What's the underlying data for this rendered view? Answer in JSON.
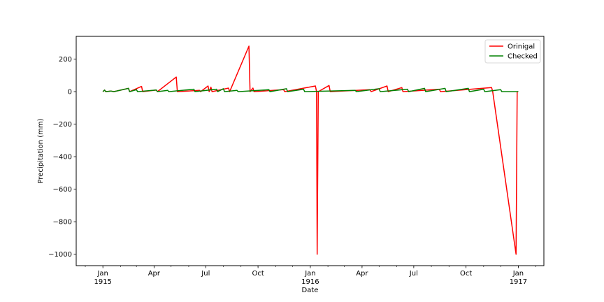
{
  "chart_data": {
    "type": "line",
    "xlabel": "Date",
    "ylabel": "Precipitation (mm)",
    "xlim": [
      "1914-11-15",
      "1917-02-15"
    ],
    "ylim": [
      -1070,
      340
    ],
    "grid": false,
    "legend_position": "top-right",
    "x_ticks": [
      {
        "date": "1915-01-01",
        "label": "Jan",
        "label2": "1915"
      },
      {
        "date": "1915-04-01",
        "label": "Apr",
        "label2": ""
      },
      {
        "date": "1915-07-01",
        "label": "Jul",
        "label2": ""
      },
      {
        "date": "1915-10-01",
        "label": "Oct",
        "label2": ""
      },
      {
        "date": "1916-01-01",
        "label": "Jan",
        "label2": "1916"
      },
      {
        "date": "1916-04-01",
        "label": "Apr",
        "label2": ""
      },
      {
        "date": "1916-07-01",
        "label": "Jul",
        "label2": ""
      },
      {
        "date": "1916-10-01",
        "label": "Oct",
        "label2": ""
      },
      {
        "date": "1917-01-01",
        "label": "Jan",
        "label2": "1917"
      }
    ],
    "y_ticks": [
      {
        "value": 200,
        "label": "200"
      },
      {
        "value": 0,
        "label": "0"
      },
      {
        "value": -200,
        "label": "−200"
      },
      {
        "value": -400,
        "label": "−400"
      },
      {
        "value": -600,
        "label": "−600"
      },
      {
        "value": -800,
        "label": "−800"
      },
      {
        "value": -1000,
        "label": "−1000"
      }
    ],
    "series": [
      {
        "name": "Orinigal",
        "color": "#ff0000",
        "points": [
          [
            "1915-01-01",
            0
          ],
          [
            "1915-01-04",
            10
          ],
          [
            "1915-01-06",
            0
          ],
          [
            "1915-01-15",
            4
          ],
          [
            "1915-01-20",
            0
          ],
          [
            "1915-02-15",
            20
          ],
          [
            "1915-02-17",
            0
          ],
          [
            "1915-03-10",
            32
          ],
          [
            "1915-03-12",
            0
          ],
          [
            "1915-04-05",
            10
          ],
          [
            "1915-04-07",
            0
          ],
          [
            "1915-05-10",
            90
          ],
          [
            "1915-05-12",
            0
          ],
          [
            "1915-06-20",
            8
          ],
          [
            "1915-06-22",
            0
          ],
          [
            "1915-07-05",
            35
          ],
          [
            "1915-07-07",
            0
          ],
          [
            "1915-07-10",
            28
          ],
          [
            "1915-07-12",
            0
          ],
          [
            "1915-08-10",
            22
          ],
          [
            "1915-08-12",
            0
          ],
          [
            "1915-09-15",
            280
          ],
          [
            "1915-09-17",
            0
          ],
          [
            "1915-09-22",
            22
          ],
          [
            "1915-09-24",
            0
          ],
          [
            "1915-11-15",
            12
          ],
          [
            "1915-11-17",
            0
          ],
          [
            "1916-01-10",
            35
          ],
          [
            "1916-01-12",
            0
          ],
          [
            "1916-01-13",
            -1000
          ],
          [
            "1916-01-15",
            0
          ],
          [
            "1916-02-03",
            38
          ],
          [
            "1916-02-05",
            0
          ],
          [
            "1916-04-15",
            12
          ],
          [
            "1916-04-17",
            0
          ],
          [
            "1916-05-15",
            35
          ],
          [
            "1916-05-17",
            0
          ],
          [
            "1916-06-10",
            25
          ],
          [
            "1916-06-12",
            0
          ],
          [
            "1916-08-15",
            15
          ],
          [
            "1916-08-17",
            0
          ],
          [
            "1916-11-15",
            25
          ],
          [
            "1916-11-17",
            0
          ],
          [
            "1916-12-28",
            -1000
          ],
          [
            "1916-12-30",
            0
          ],
          [
            "1917-01-01",
            0
          ]
        ]
      },
      {
        "name": "Checked",
        "color": "#008000",
        "points": [
          [
            "1915-01-01",
            0
          ],
          [
            "1915-01-04",
            10
          ],
          [
            "1915-01-06",
            0
          ],
          [
            "1915-01-15",
            4
          ],
          [
            "1915-01-20",
            0
          ],
          [
            "1915-02-15",
            20
          ],
          [
            "1915-02-17",
            0
          ],
          [
            "1915-03-01",
            12
          ],
          [
            "1915-03-03",
            0
          ],
          [
            "1915-04-05",
            10
          ],
          [
            "1915-04-07",
            0
          ],
          [
            "1915-04-25",
            8
          ],
          [
            "1915-04-27",
            0
          ],
          [
            "1915-06-10",
            15
          ],
          [
            "1915-06-12",
            0
          ],
          [
            "1915-07-20",
            15
          ],
          [
            "1915-07-22",
            0
          ],
          [
            "1915-08-01",
            18
          ],
          [
            "1915-08-03",
            0
          ],
          [
            "1915-08-25",
            8
          ],
          [
            "1915-08-27",
            0
          ],
          [
            "1915-10-20",
            12
          ],
          [
            "1915-10-22",
            0
          ],
          [
            "1915-11-20",
            18
          ],
          [
            "1915-11-22",
            0
          ],
          [
            "1915-12-20",
            15
          ],
          [
            "1915-12-22",
            0
          ],
          [
            "1916-03-20",
            8
          ],
          [
            "1916-03-22",
            0
          ],
          [
            "1916-05-01",
            18
          ],
          [
            "1916-05-03",
            0
          ],
          [
            "1916-06-20",
            15
          ],
          [
            "1916-06-22",
            0
          ],
          [
            "1916-07-20",
            20
          ],
          [
            "1916-07-22",
            0
          ],
          [
            "1916-08-25",
            20
          ],
          [
            "1916-08-27",
            0
          ],
          [
            "1916-10-05",
            20
          ],
          [
            "1916-10-07",
            0
          ],
          [
            "1916-11-01",
            15
          ],
          [
            "1916-11-03",
            0
          ],
          [
            "1916-12-01",
            12
          ],
          [
            "1916-12-03",
            0
          ],
          [
            "1917-01-01",
            0
          ]
        ]
      }
    ]
  }
}
